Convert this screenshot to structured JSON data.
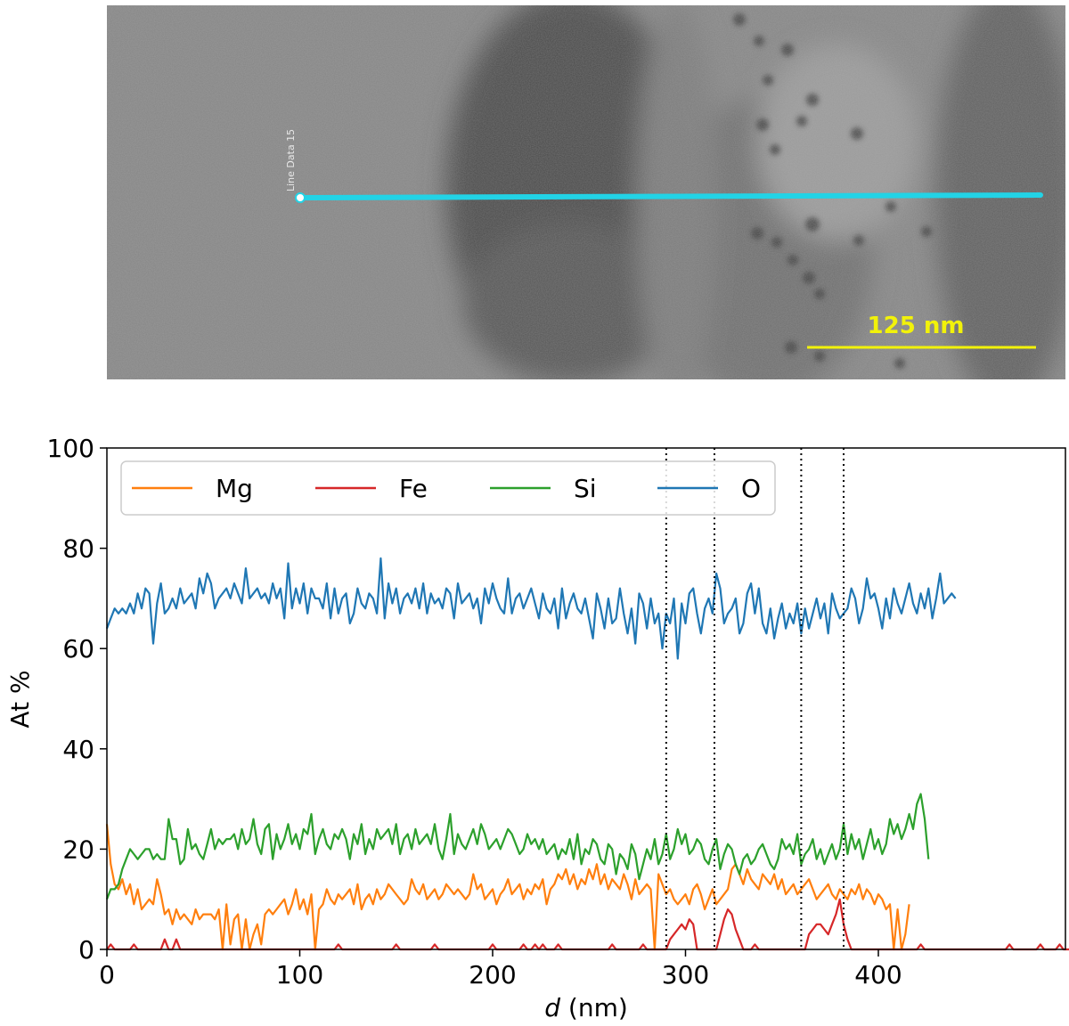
{
  "micrograph": {
    "line_label": "Line Data 15",
    "scale_bar_label": "125 nm",
    "colors": {
      "line": "#22d3e6",
      "scale_bar": "#f2f20a"
    }
  },
  "chart_data": {
    "type": "line",
    "title": "",
    "xlabel_italic": "d",
    "xlabel_rest": " (nm)",
    "ylabel": "At %",
    "xlim": [
      0,
      497
    ],
    "ylim": [
      0,
      100
    ],
    "xticks": [
      0,
      100,
      200,
      300,
      400
    ],
    "yticks": [
      0,
      20,
      40,
      60,
      80,
      100
    ],
    "grid": false,
    "legend_position": "top-left",
    "vlines": [
      290,
      315,
      360,
      382
    ],
    "sample_step": 2,
    "series": [
      {
        "name": "Mg",
        "color": "#ff7f0e",
        "values": [
          25,
          17,
          13,
          12,
          14,
          11,
          13,
          9,
          12,
          8,
          9,
          10,
          9,
          14,
          11,
          7,
          8,
          5,
          8,
          6,
          7,
          6,
          5,
          8,
          6,
          7,
          7,
          7,
          6,
          8,
          0,
          9,
          1,
          6,
          7,
          0,
          6,
          0,
          3,
          5,
          1,
          7,
          8,
          7,
          8,
          9,
          10,
          7,
          9,
          12,
          8,
          10,
          7,
          11,
          0,
          8,
          9,
          12,
          10,
          9,
          11,
          10,
          11,
          12,
          9,
          13,
          8,
          10,
          11,
          9,
          12,
          10,
          11,
          13,
          12,
          11,
          10,
          9,
          10,
          14,
          12,
          11,
          13,
          10,
          11,
          12,
          10,
          11,
          13,
          12,
          11,
          12,
          11,
          10,
          11,
          15,
          12,
          13,
          10,
          11,
          12,
          9,
          11,
          12,
          14,
          11,
          12,
          13,
          10,
          12,
          11,
          13,
          12,
          14,
          9,
          12,
          13,
          15,
          14,
          16,
          13,
          15,
          12,
          14,
          13,
          16,
          14,
          17,
          13,
          15,
          12,
          14,
          13,
          12,
          15,
          13,
          10,
          14,
          11,
          12,
          13,
          12,
          0,
          15,
          13,
          11,
          12,
          10,
          9,
          10,
          11,
          9,
          12,
          13,
          11,
          8,
          10,
          12,
          9,
          10,
          11,
          12,
          16,
          17,
          15,
          13,
          16,
          14,
          13,
          12,
          15,
          14,
          13,
          15,
          12,
          14,
          11,
          12,
          13,
          11,
          12,
          13,
          14,
          12,
          10,
          11,
          12,
          13,
          11,
          10,
          12,
          11,
          10,
          12,
          11,
          13,
          10,
          12,
          11,
          9,
          11,
          10,
          8,
          9,
          0,
          8,
          0,
          3,
          9
        ]
      },
      {
        "name": "Fe",
        "color": "#d62728",
        "values": [
          0,
          1,
          0,
          0,
          0,
          0,
          0,
          1,
          0,
          0,
          0,
          0,
          0,
          0,
          0,
          2,
          0,
          0,
          2,
          0,
          0,
          0,
          0,
          0,
          0,
          0,
          0,
          0,
          0,
          0,
          0,
          0,
          0,
          0,
          0,
          0,
          0,
          0,
          0,
          0,
          0,
          0,
          0,
          0,
          0,
          0,
          0,
          0,
          0,
          0,
          0,
          0,
          0,
          0,
          0,
          0,
          0,
          0,
          0,
          0,
          1,
          0,
          0,
          0,
          0,
          0,
          0,
          0,
          0,
          0,
          0,
          0,
          0,
          0,
          0,
          1,
          0,
          0,
          0,
          0,
          0,
          0,
          0,
          0,
          0,
          1,
          0,
          0,
          0,
          0,
          0,
          0,
          0,
          0,
          0,
          0,
          0,
          0,
          0,
          0,
          1,
          0,
          0,
          0,
          0,
          0,
          0,
          0,
          1,
          0,
          0,
          1,
          0,
          1,
          0,
          0,
          0,
          1,
          0,
          0,
          0,
          0,
          0,
          0,
          0,
          0,
          0,
          0,
          0,
          0,
          0,
          1,
          0,
          0,
          0,
          0,
          0,
          0,
          0,
          1,
          0,
          0,
          0,
          0,
          0,
          0,
          2,
          3,
          4,
          5,
          4,
          6,
          5,
          0,
          0,
          0,
          0,
          0,
          0,
          3,
          6,
          8,
          7,
          4,
          2,
          0,
          0,
          0,
          1,
          0,
          0,
          0,
          0,
          0,
          0,
          0,
          0,
          0,
          0,
          0,
          0,
          0,
          3,
          4,
          5,
          5,
          4,
          3,
          5,
          7,
          10,
          5,
          2,
          0,
          0,
          0,
          0,
          0,
          0,
          0,
          0,
          0,
          0,
          0,
          0,
          0,
          0,
          0,
          0,
          0,
          0,
          1,
          0,
          0,
          0,
          0,
          0,
          0,
          0,
          0,
          0,
          0,
          0,
          0,
          0,
          0,
          0,
          0,
          0,
          0,
          0,
          0,
          0,
          0,
          1,
          0,
          0,
          0,
          0,
          0,
          0,
          0,
          1,
          0,
          0,
          0,
          0,
          1,
          0,
          0,
          0,
          0
        ]
      },
      {
        "name": "Si",
        "color": "#2ca02c",
        "values": [
          10,
          12,
          12,
          13,
          16,
          18,
          20,
          19,
          18,
          19,
          20,
          20,
          18,
          19,
          18,
          18,
          26,
          22,
          22,
          17,
          18,
          24,
          20,
          21,
          19,
          18,
          21,
          24,
          20,
          22,
          21,
          22,
          22,
          23,
          20,
          24,
          21,
          22,
          26,
          21,
          19,
          24,
          25,
          18,
          23,
          20,
          22,
          25,
          21,
          23,
          20,
          24,
          23,
          27,
          19,
          22,
          24,
          21,
          20,
          23,
          22,
          24,
          22,
          18,
          23,
          21,
          25,
          19,
          22,
          20,
          24,
          22,
          23,
          24,
          21,
          25,
          19,
          22,
          23,
          20,
          24,
          21,
          22,
          23,
          21,
          25,
          20,
          18,
          22,
          27,
          19,
          23,
          21,
          20,
          22,
          24,
          21,
          25,
          23,
          20,
          21,
          22,
          20,
          22,
          24,
          23,
          21,
          19,
          20,
          23,
          21,
          22,
          20,
          22,
          19,
          20,
          21,
          18,
          20,
          19,
          22,
          18,
          23,
          17,
          20,
          19,
          22,
          21,
          18,
          17,
          21,
          20,
          15,
          19,
          18,
          16,
          21,
          19,
          14,
          17,
          20,
          18,
          22,
          17,
          19,
          23,
          18,
          20,
          24,
          21,
          23,
          19,
          20,
          22,
          21,
          18,
          17,
          20,
          22,
          16,
          19,
          21,
          20,
          17,
          15,
          18,
          19,
          17,
          18,
          20,
          21,
          19,
          17,
          16,
          18,
          22,
          20,
          21,
          19,
          23,
          17,
          19,
          20,
          22,
          18,
          20,
          17,
          19,
          21,
          18,
          20,
          25,
          19,
          23,
          20,
          22,
          18,
          21,
          24,
          20,
          22,
          19,
          21,
          26,
          23,
          25,
          22,
          24,
          27,
          24,
          29,
          31,
          26,
          18
        ]
      },
      {
        "name": "O",
        "color": "#1f77b4",
        "values": [
          64,
          66,
          68,
          67,
          68,
          67,
          69,
          67,
          71,
          68,
          72,
          71,
          61,
          69,
          73,
          67,
          68,
          70,
          68,
          72,
          69,
          70,
          71,
          68,
          74,
          71,
          75,
          73,
          68,
          70,
          71,
          72,
          70,
          73,
          71,
          69,
          76,
          70,
          71,
          72,
          70,
          71,
          69,
          73,
          70,
          72,
          66,
          77,
          68,
          72,
          69,
          73,
          67,
          72,
          70,
          70,
          68,
          73,
          66,
          72,
          67,
          70,
          71,
          65,
          67,
          72,
          69,
          68,
          71,
          70,
          67,
          78,
          66,
          73,
          69,
          72,
          67,
          70,
          71,
          69,
          72,
          68,
          73,
          67,
          71,
          69,
          70,
          68,
          72,
          71,
          66,
          73,
          69,
          70,
          71,
          68,
          70,
          65,
          72,
          69,
          73,
          70,
          68,
          67,
          74,
          67,
          70,
          71,
          68,
          70,
          72,
          69,
          66,
          71,
          68,
          67,
          70,
          64,
          72,
          66,
          69,
          71,
          68,
          67,
          70,
          66,
          62,
          71,
          68,
          64,
          70,
          65,
          66,
          72,
          67,
          63,
          68,
          61,
          71,
          69,
          64,
          70,
          65,
          67,
          60,
          67,
          65,
          70,
          58,
          69,
          65,
          71,
          72,
          67,
          63,
          68,
          70,
          67,
          75,
          72,
          65,
          67,
          68,
          70,
          63,
          65,
          71,
          73,
          67,
          72,
          65,
          63,
          68,
          62,
          66,
          69,
          64,
          67,
          65,
          69,
          63,
          68,
          64,
          67,
          70,
          66,
          69,
          63,
          71,
          68,
          66,
          67,
          68,
          72,
          70,
          65,
          68,
          74,
          70,
          71,
          68,
          64,
          70,
          66,
          72,
          69,
          67,
          70,
          73,
          69,
          67,
          71,
          68,
          72,
          66,
          70,
          75,
          69,
          70,
          71,
          70
        ]
      }
    ]
  }
}
